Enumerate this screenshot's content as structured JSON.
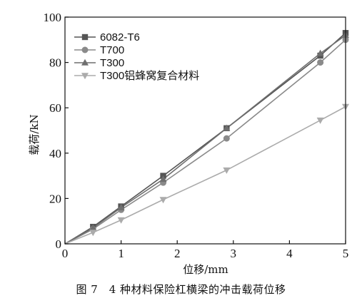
{
  "caption": "图 7　4 种材料保险杠横梁的冲击载荷位移",
  "chart_data": {
    "type": "line",
    "xlabel": "位移/mm",
    "ylabel": "载荷/kN",
    "xlim": [
      0,
      5
    ],
    "ylim": [
      0,
      100
    ],
    "xticks": [
      "0",
      "1",
      "2",
      "3",
      "4",
      "5"
    ],
    "yticks": [
      "0",
      "20",
      "40",
      "60",
      "80",
      "100"
    ],
    "grid": false,
    "legend_position": "top-left",
    "series": [
      {
        "name": "6082-T6",
        "marker": "square",
        "color": "#555555",
        "x": [
          0,
          0.5,
          1.0,
          1.75,
          2.88,
          4.55,
          5.0
        ],
        "y": [
          0,
          7.5,
          16.5,
          30,
          51,
          83,
          93
        ]
      },
      {
        "name": "T700",
        "marker": "circle",
        "color": "#8a8a8a",
        "x": [
          0,
          0.5,
          1.0,
          1.75,
          2.88,
          4.55,
          5.0
        ],
        "y": [
          0,
          6.5,
          15,
          27,
          46.5,
          80,
          90
        ]
      },
      {
        "name": "T300",
        "marker": "triangle-up",
        "color": "#6f6f6f",
        "x": [
          0,
          0.5,
          1.0,
          1.75,
          2.88,
          4.55,
          5.0
        ],
        "y": [
          0,
          7,
          16,
          28.5,
          51,
          84,
          92
        ]
      },
      {
        "name": "T300铝蜂窝复合材料",
        "marker": "triangle-down",
        "color": "#ababab",
        "x": [
          0,
          0.5,
          1.0,
          1.75,
          2.88,
          4.55,
          5.0
        ],
        "y": [
          0,
          5,
          10.5,
          19.5,
          32.5,
          54.5,
          60.5
        ]
      }
    ]
  }
}
